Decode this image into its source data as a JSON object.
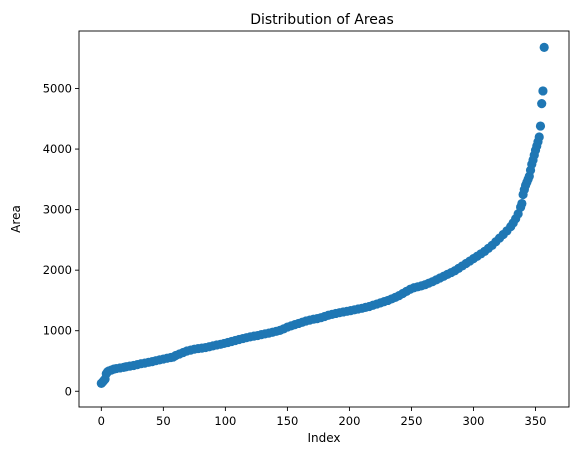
{
  "chart_data": {
    "type": "scatter",
    "title": "Distribution of Areas",
    "xlabel": "Index",
    "ylabel": "Area",
    "xlim": [
      -18,
      377
    ],
    "ylim": [
      -260,
      5950
    ],
    "xticks": [
      0,
      50,
      100,
      150,
      200,
      250,
      300,
      350
    ],
    "yticks": [
      0,
      1000,
      2000,
      3000,
      4000,
      5000
    ],
    "grid": false,
    "legend": "none",
    "marker_color": "#1f77b4",
    "series": [
      {
        "points": [
          [
            0,
            130
          ],
          [
            1,
            150
          ],
          [
            2,
            175
          ],
          [
            3,
            200
          ],
          [
            4,
            290
          ],
          [
            5,
            320
          ],
          [
            6,
            335
          ],
          [
            8,
            350
          ],
          [
            10,
            365
          ],
          [
            12,
            375
          ],
          [
            15,
            385
          ],
          [
            18,
            395
          ],
          [
            20,
            405
          ],
          [
            23,
            415
          ],
          [
            26,
            425
          ],
          [
            29,
            440
          ],
          [
            32,
            455
          ],
          [
            35,
            465
          ],
          [
            38,
            478
          ],
          [
            41,
            490
          ],
          [
            44,
            505
          ],
          [
            47,
            518
          ],
          [
            50,
            532
          ],
          [
            53,
            545
          ],
          [
            56,
            558
          ],
          [
            58,
            565
          ],
          [
            60,
            590
          ],
          [
            63,
            615
          ],
          [
            66,
            640
          ],
          [
            69,
            665
          ],
          [
            72,
            680
          ],
          [
            75,
            695
          ],
          [
            78,
            705
          ],
          [
            81,
            712
          ],
          [
            84,
            722
          ],
          [
            87,
            735
          ],
          [
            90,
            750
          ],
          [
            93,
            765
          ],
          [
            96,
            775
          ],
          [
            99,
            790
          ],
          [
            102,
            805
          ],
          [
            105,
            822
          ],
          [
            108,
            838
          ],
          [
            111,
            855
          ],
          [
            114,
            870
          ],
          [
            117,
            885
          ],
          [
            120,
            898
          ],
          [
            123,
            910
          ],
          [
            126,
            920
          ],
          [
            129,
            935
          ],
          [
            132,
            948
          ],
          [
            135,
            960
          ],
          [
            138,
            975
          ],
          [
            141,
            990
          ],
          [
            144,
            1005
          ],
          [
            147,
            1030
          ],
          [
            150,
            1060
          ],
          [
            153,
            1080
          ],
          [
            156,
            1100
          ],
          [
            159,
            1120
          ],
          [
            162,
            1140
          ],
          [
            165,
            1160
          ],
          [
            168,
            1175
          ],
          [
            171,
            1190
          ],
          [
            174,
            1200
          ],
          [
            177,
            1215
          ],
          [
            180,
            1235
          ],
          [
            183,
            1255
          ],
          [
            186,
            1270
          ],
          [
            189,
            1285
          ],
          [
            192,
            1298
          ],
          [
            195,
            1310
          ],
          [
            198,
            1320
          ],
          [
            201,
            1332
          ],
          [
            204,
            1345
          ],
          [
            207,
            1358
          ],
          [
            210,
            1370
          ],
          [
            213,
            1385
          ],
          [
            216,
            1400
          ],
          [
            219,
            1420
          ],
          [
            222,
            1440
          ],
          [
            225,
            1460
          ],
          [
            228,
            1480
          ],
          [
            231,
            1500
          ],
          [
            234,
            1525
          ],
          [
            237,
            1550
          ],
          [
            240,
            1580
          ],
          [
            243,
            1615
          ],
          [
            246,
            1650
          ],
          [
            249,
            1685
          ],
          [
            252,
            1710
          ],
          [
            255,
            1725
          ],
          [
            258,
            1740
          ],
          [
            261,
            1760
          ],
          [
            264,
            1785
          ],
          [
            267,
            1810
          ],
          [
            270,
            1840
          ],
          [
            273,
            1870
          ],
          [
            276,
            1900
          ],
          [
            279,
            1930
          ],
          [
            282,
            1960
          ],
          [
            285,
            1990
          ],
          [
            288,
            2030
          ],
          [
            291,
            2070
          ],
          [
            294,
            2110
          ],
          [
            297,
            2150
          ],
          [
            300,
            2190
          ],
          [
            303,
            2230
          ],
          [
            306,
            2270
          ],
          [
            309,
            2310
          ],
          [
            312,
            2360
          ],
          [
            315,
            2410
          ],
          [
            318,
            2470
          ],
          [
            321,
            2530
          ],
          [
            324,
            2590
          ],
          [
            327,
            2650
          ],
          [
            330,
            2720
          ],
          [
            332,
            2780
          ],
          [
            334,
            2850
          ],
          [
            336,
            2930
          ],
          [
            338,
            3040
          ],
          [
            339,
            3100
          ],
          [
            340,
            3250
          ],
          [
            341,
            3330
          ],
          [
            342,
            3400
          ],
          [
            343,
            3450
          ],
          [
            344,
            3500
          ],
          [
            345,
            3550
          ],
          [
            346,
            3650
          ],
          [
            347,
            3750
          ],
          [
            348,
            3820
          ],
          [
            349,
            3900
          ],
          [
            350,
            3980
          ],
          [
            351,
            4050
          ],
          [
            352,
            4120
          ],
          [
            353,
            4200
          ],
          [
            354,
            4380
          ],
          [
            355,
            4750
          ],
          [
            356,
            4960
          ],
          [
            357,
            5680
          ]
        ]
      }
    ]
  }
}
